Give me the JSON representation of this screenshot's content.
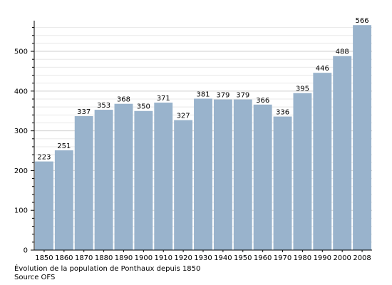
{
  "chart_data": {
    "type": "bar",
    "categories": [
      "1850",
      "1860",
      "1870",
      "1880",
      "1890",
      "1900",
      "1910",
      "1920",
      "1930",
      "1940",
      "1950",
      "1960",
      "1970",
      "1980",
      "1990",
      "2000",
      "2008"
    ],
    "values": [
      223,
      251,
      337,
      353,
      368,
      350,
      371,
      327,
      381,
      379,
      379,
      366,
      336,
      395,
      446,
      488,
      566
    ],
    "ylim": [
      0,
      570
    ],
    "yticks": [
      0,
      100,
      200,
      300,
      400,
      500
    ],
    "grid": true,
    "bar_color": "#99b3cc"
  },
  "caption": {
    "line1": "Évolution de la population de Ponthaux depuis 1850",
    "line2": "Source OFS"
  }
}
